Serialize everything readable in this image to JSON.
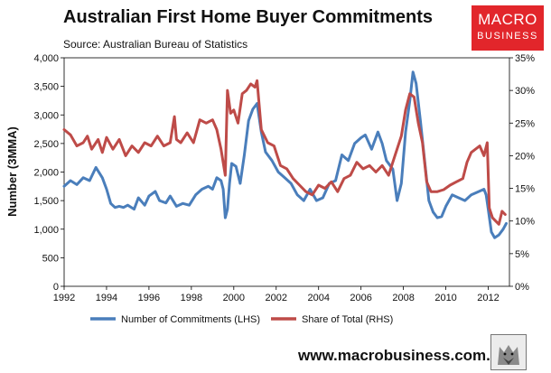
{
  "header": {
    "title": "Australian First Home Buyer Commitments",
    "source": "Source: Australian Bureau of Statistics"
  },
  "logo": {
    "line1": "MACRO",
    "line2": "BUSINESS"
  },
  "footer": {
    "url": "www.macrobusiness.com.au"
  },
  "colors": {
    "lhs_series": "#4a7ebb",
    "rhs_series": "#be4b48",
    "logo_bg": "#e2262b"
  },
  "chart_data": {
    "type": "line",
    "title": "Australian First Home Buyer Commitments",
    "ylabel": "Number (3MMA)",
    "y2label": "",
    "xlim": [
      1992,
      2013
    ],
    "ylim": [
      0,
      4000
    ],
    "y2lim": [
      0,
      35
    ],
    "x_ticks": [
      "1992",
      "1994",
      "1996",
      "1998",
      "2000",
      "2002",
      "2004",
      "2006",
      "2008",
      "2010",
      "2012"
    ],
    "y_ticks": [
      "0",
      "500",
      "1,000",
      "1,500",
      "2,000",
      "2,500",
      "3,000",
      "3,500",
      "4,000"
    ],
    "y2_ticks": [
      "0%",
      "5%",
      "10%",
      "15%",
      "20%",
      "25%",
      "30%",
      "35%"
    ],
    "grid": false,
    "legend_position": "bottom",
    "series": [
      {
        "name": "Number of Commitments (LHS)",
        "axis": "left",
        "x": [
          1992.0,
          1992.3,
          1992.6,
          1992.9,
          1993.2,
          1993.5,
          1993.8,
          1994.0,
          1994.2,
          1994.4,
          1994.6,
          1994.8,
          1995.0,
          1995.3,
          1995.5,
          1995.8,
          1996.0,
          1996.3,
          1996.5,
          1996.8,
          1997.0,
          1997.3,
          1997.6,
          1997.9,
          1998.2,
          1998.5,
          1998.8,
          1999.0,
          1999.2,
          1999.4,
          1999.5,
          1999.6,
          1999.7,
          1999.8,
          1999.9,
          2000.1,
          2000.3,
          2000.5,
          2000.7,
          2000.9,
          2001.1,
          2001.3,
          2001.5,
          2001.8,
          2002.1,
          2002.4,
          2002.7,
          2003.0,
          2003.3,
          2003.6,
          2003.9,
          2004.2,
          2004.5,
          2004.8,
          2005.1,
          2005.4,
          2005.7,
          2006.0,
          2006.2,
          2006.5,
          2006.8,
          2007.0,
          2007.2,
          2007.5,
          2007.7,
          2007.9,
          2008.1,
          2008.3,
          2008.45,
          2008.6,
          2008.8,
          2009.0,
          2009.2,
          2009.4,
          2009.6,
          2009.8,
          2010.0,
          2010.3,
          2010.6,
          2010.9,
          2011.2,
          2011.5,
          2011.8,
          2011.9,
          2012.0,
          2012.15,
          2012.3,
          2012.5,
          2012.7,
          2012.85
        ],
        "values": [
          1750,
          1850,
          1780,
          1900,
          1850,
          2080,
          1900,
          1700,
          1450,
          1380,
          1400,
          1380,
          1420,
          1350,
          1550,
          1420,
          1580,
          1660,
          1500,
          1460,
          1580,
          1400,
          1450,
          1420,
          1600,
          1700,
          1750,
          1700,
          1900,
          1850,
          1700,
          1200,
          1350,
          1800,
          2150,
          2100,
          1800,
          2300,
          2900,
          3100,
          3200,
          2700,
          2350,
          2200,
          2000,
          1900,
          1800,
          1600,
          1500,
          1700,
          1500,
          1550,
          1800,
          1850,
          2300,
          2200,
          2500,
          2600,
          2650,
          2400,
          2700,
          2500,
          2200,
          2050,
          1500,
          1800,
          2700,
          3250,
          3750,
          3550,
          2900,
          2200,
          1500,
          1300,
          1200,
          1220,
          1400,
          1600,
          1550,
          1500,
          1600,
          1650,
          1700,
          1600,
          1350,
          950,
          850,
          900,
          1000,
          1100
        ]
      },
      {
        "name": "Share of Total (RHS)",
        "axis": "right",
        "x": [
          1992.0,
          1992.3,
          1992.6,
          1992.9,
          1993.1,
          1993.3,
          1993.6,
          1993.8,
          1994.0,
          1994.3,
          1994.6,
          1994.9,
          1995.2,
          1995.5,
          1995.8,
          1996.1,
          1996.4,
          1996.7,
          1997.0,
          1997.2,
          1997.3,
          1997.5,
          1997.8,
          1998.1,
          1998.4,
          1998.7,
          1999.0,
          1999.2,
          1999.4,
          1999.6,
          1999.7,
          1999.85,
          2000.0,
          2000.2,
          2000.4,
          2000.6,
          2000.8,
          2001.0,
          2001.1,
          2001.3,
          2001.6,
          2001.9,
          2002.2,
          2002.5,
          2002.8,
          2003.1,
          2003.4,
          2003.7,
          2004.0,
          2004.3,
          2004.6,
          2004.9,
          2005.2,
          2005.5,
          2005.8,
          2006.1,
          2006.4,
          2006.7,
          2007.0,
          2007.3,
          2007.6,
          2007.9,
          2008.1,
          2008.3,
          2008.5,
          2008.7,
          2008.9,
          2009.1,
          2009.3,
          2009.6,
          2009.9,
          2010.2,
          2010.5,
          2010.8,
          2011.0,
          2011.2,
          2011.4,
          2011.6,
          2011.8,
          2011.95,
          2012.05,
          2012.2,
          2012.35,
          2012.5,
          2012.65,
          2012.8
        ],
        "values": [
          24.0,
          23.2,
          21.5,
          22.0,
          23.0,
          21.0,
          22.5,
          20.5,
          22.8,
          21.0,
          22.5,
          20.0,
          21.5,
          20.5,
          22.0,
          21.5,
          23.0,
          21.5,
          22.0,
          26.0,
          22.5,
          22.0,
          23.5,
          22.0,
          25.5,
          25.0,
          25.5,
          24.0,
          21.0,
          17.0,
          30.0,
          26.5,
          27.0,
          25.0,
          29.5,
          30.0,
          31.0,
          30.5,
          31.5,
          24.0,
          22.0,
          21.5,
          18.5,
          18.0,
          16.5,
          15.5,
          14.5,
          14.0,
          15.5,
          15.0,
          16.0,
          14.5,
          16.5,
          17.0,
          19.0,
          18.0,
          18.5,
          17.5,
          18.5,
          17.0,
          20.0,
          23.0,
          27.0,
          29.5,
          29.0,
          25.0,
          22.0,
          16.0,
          14.5,
          14.5,
          14.8,
          15.5,
          16.0,
          16.5,
          19.0,
          20.5,
          21.0,
          21.5,
          20.0,
          22.0,
          12.0,
          10.5,
          10.0,
          9.5,
          11.5,
          11.0
        ]
      }
    ]
  }
}
